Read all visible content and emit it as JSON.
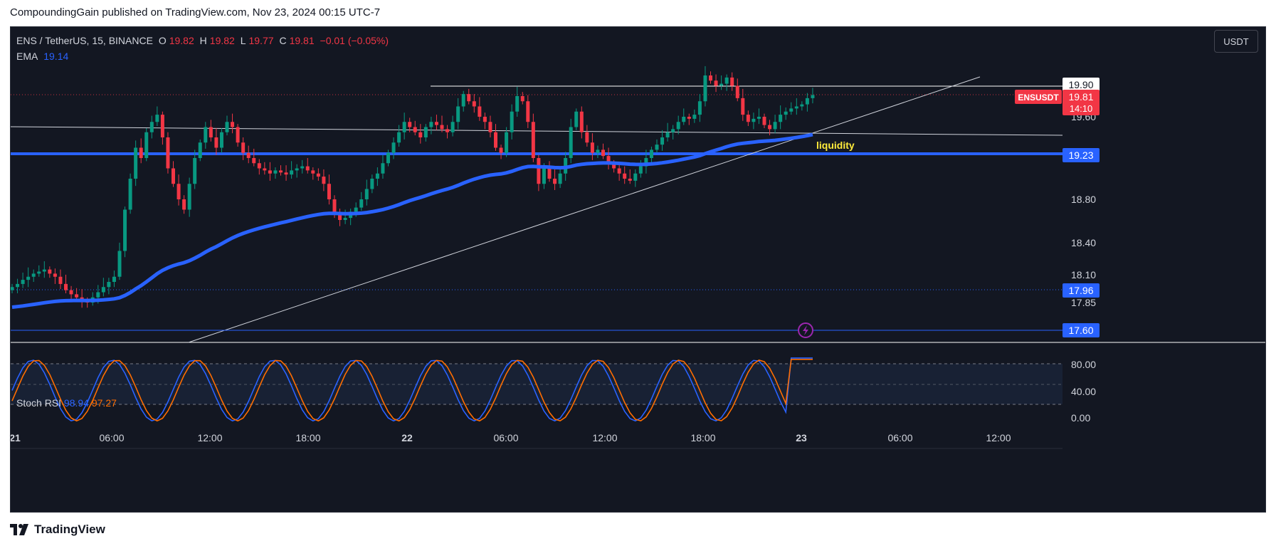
{
  "header": {
    "text": "CompoundingGain published on TradingView.com, Nov 23, 2024 00:15 UTC-7"
  },
  "legend": {
    "symbol": "ENS / TetherUS, 15, BINANCE",
    "o_label": "O",
    "o": "19.82",
    "h_label": "H",
    "h": "19.82",
    "l_label": "L",
    "l": "19.77",
    "c_label": "C",
    "c": "19.81",
    "change": "−0.01 (−0.05%)",
    "ema_label": "EMA",
    "ema_value": "19.14"
  },
  "currency_button": "USDT",
  "price_axis": {
    "ticks": [
      "19.60",
      "18.80",
      "18.40",
      "18.10",
      "17.85",
      "0.00"
    ],
    "stoch_ticks": [
      "80.00",
      "40.00",
      "0.00"
    ]
  },
  "price_badges": {
    "h_line": "19.90",
    "symbol_tag": "ENSUSDT",
    "last_price": "19.81",
    "countdown": "14:10",
    "support": "19.23",
    "dotted_level": "17.96",
    "low_level": "17.60"
  },
  "annotation": {
    "liquidity": "liquidity"
  },
  "time_axis": [
    "21",
    "06:00",
    "12:00",
    "18:00",
    "22",
    "06:00",
    "12:00",
    "18:00",
    "23",
    "06:00",
    "12:00"
  ],
  "stoch": {
    "label": "Stoch RSI",
    "k": "98.94",
    "d": "97.27"
  },
  "footer": {
    "brand": "TradingView"
  },
  "colors": {
    "bg": "#131722",
    "up": "#089981",
    "down": "#f23645",
    "ema": "#2962ff",
    "k_line": "#2962ff",
    "d_line": "#ff6d00",
    "level_line": "#2962ff"
  },
  "chart_data": {
    "type": "candlestick",
    "symbol": "ENS / TetherUS, 15, BINANCE",
    "closes": [
      17.95,
      17.98,
      18.02,
      18.05,
      18.08,
      18.1,
      18.12,
      18.08,
      18.05,
      17.98,
      17.92,
      17.88,
      17.85,
      17.82,
      17.8,
      17.85,
      17.9,
      17.95,
      18.0,
      18.05,
      18.3,
      18.7,
      19.0,
      19.3,
      19.2,
      19.45,
      19.55,
      19.62,
      19.4,
      19.1,
      18.95,
      18.8,
      18.7,
      18.95,
      19.2,
      19.35,
      19.5,
      19.4,
      19.3,
      19.45,
      19.55,
      19.5,
      19.35,
      19.25,
      19.2,
      19.15,
      19.1,
      19.08,
      19.05,
      19.08,
      19.06,
      19.04,
      19.08,
      19.1,
      19.12,
      19.08,
      19.05,
      19.02,
      18.95,
      18.8,
      18.65,
      18.6,
      18.62,
      18.68,
      18.72,
      18.8,
      18.9,
      19.0,
      19.05,
      19.15,
      19.25,
      19.35,
      19.45,
      19.55,
      19.5,
      19.45,
      19.4,
      19.5,
      19.55,
      19.52,
      19.48,
      19.45,
      19.55,
      19.7,
      19.82,
      19.75,
      19.7,
      19.6,
      19.55,
      19.45,
      19.3,
      19.25,
      19.45,
      19.65,
      19.8,
      19.75,
      19.55,
      19.2,
      18.95,
      19.1,
      19.0,
      18.95,
      19.05,
      19.2,
      19.5,
      19.65,
      19.45,
      19.35,
      19.25,
      19.28,
      19.22,
      19.15,
      19.1,
      19.05,
      19.0,
      18.98,
      19.05,
      19.12,
      19.2,
      19.28,
      19.33,
      19.4,
      19.45,
      19.48,
      19.55,
      19.6,
      19.58,
      19.62,
      19.75,
      20.0,
      19.95,
      19.9,
      19.92,
      19.98,
      19.9,
      19.78,
      19.62,
      19.55,
      19.58,
      19.6,
      19.52,
      19.48,
      19.55,
      19.62,
      19.65,
      19.68,
      19.7,
      19.72,
      19.78,
      19.81
    ],
    "ema_period_value": 19.14,
    "levels": [
      19.9,
      19.23,
      17.96,
      17.6
    ],
    "stoch_rsi": {
      "k": 98.94,
      "d": 97.27,
      "bands": [
        80,
        20
      ],
      "axis_ticks": [
        80,
        40,
        0
      ]
    },
    "annotations": [
      "liquidity"
    ]
  }
}
